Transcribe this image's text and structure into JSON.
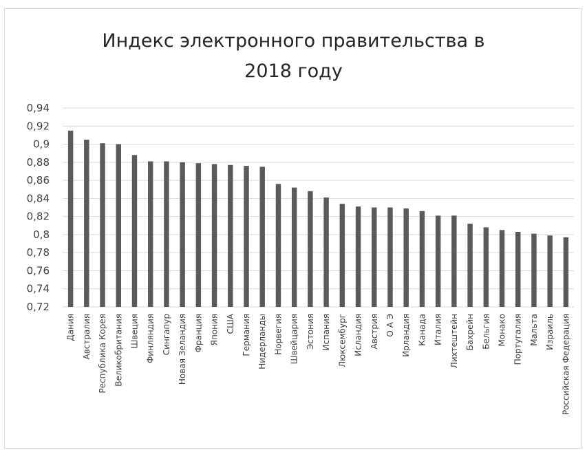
{
  "chart_data": {
    "type": "bar",
    "title_lines": [
      "Индекс электронного правительства в",
      "2018 году"
    ],
    "xlabel": "",
    "ylabel": "",
    "ylim": [
      0.72,
      0.94
    ],
    "ytick_step": 0.02,
    "ytick_labels": [
      "0,72",
      "0,74",
      "0,76",
      "0,78",
      "0,8",
      "0,82",
      "0,84",
      "0,86",
      "0,88",
      "0,9",
      "0,92",
      "0,94"
    ],
    "grid": true,
    "legend": "none",
    "bar_color": "#5a5a5a",
    "grid_color": "#d9d9d9",
    "categories": [
      "Дания",
      "Австралия",
      "Республика Корея",
      "Великобритания",
      "Швеция",
      "Финляндия",
      "Сингапур",
      "Новая Зеландия",
      "Франция",
      "Япония",
      "США",
      "Германия",
      "Нидерланды",
      "Норвегия",
      "Швейцария",
      "Эстония",
      "Испания",
      "Люксембург",
      "Исландия",
      "Австрия",
      "О А Э",
      "Ирландия",
      "Канада",
      "Италия",
      "Лихтештейн",
      "Бахрейн",
      "Бельгия",
      "Монако",
      "Португалия",
      "Мальта",
      "Израиль",
      "Российская Федерация"
    ],
    "values": [
      0.915,
      0.905,
      0.901,
      0.9,
      0.888,
      0.881,
      0.881,
      0.88,
      0.879,
      0.878,
      0.877,
      0.876,
      0.875,
      0.856,
      0.852,
      0.848,
      0.841,
      0.834,
      0.831,
      0.83,
      0.83,
      0.829,
      0.826,
      0.821,
      0.821,
      0.812,
      0.808,
      0.805,
      0.803,
      0.801,
      0.799,
      0.797
    ]
  }
}
